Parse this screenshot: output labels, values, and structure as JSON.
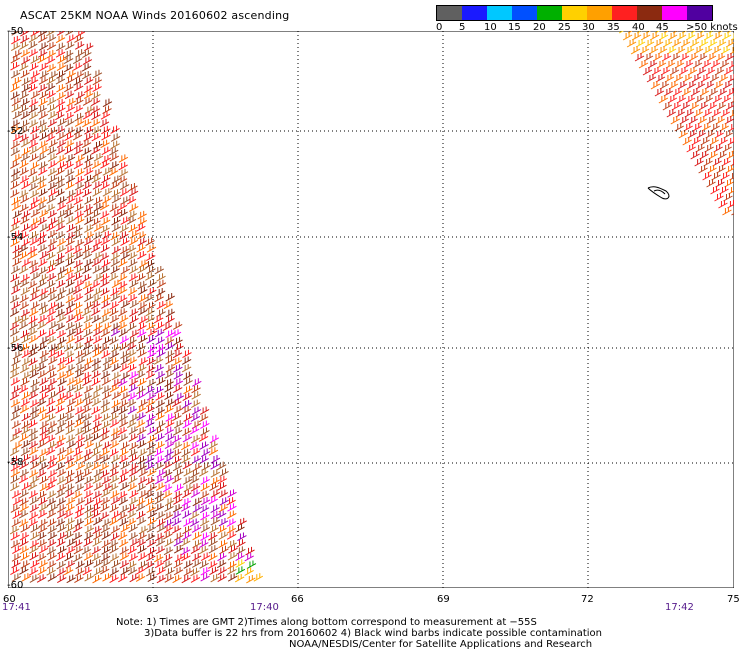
{
  "title": "ASCAT 25KM NOAA Winds 20160602 ascending",
  "legend": {
    "labels": [
      "0",
      "5",
      "10",
      "15",
      "20",
      "25",
      "30",
      "35",
      "40",
      "45",
      ">50 knots"
    ],
    "colors": [
      "#606060",
      "#1a1aff",
      "#00c8ff",
      "#0050ff",
      "#00b000",
      "#ffd000",
      "#ffa000",
      "#ff2020",
      "#8b2a10",
      "#ff00ff",
      "#5000a0"
    ]
  },
  "map": {
    "y_labels": [
      "-50",
      "-52",
      "-54",
      "-56",
      "-58",
      "-60"
    ],
    "x_labels": [
      "60",
      "63",
      "66",
      "69",
      "72",
      "75"
    ],
    "time_labels": [
      "17:41",
      "17:40",
      "17:42"
    ]
  },
  "notes": {
    "line1": "Note: 1) Times are GMT 2)Times along bottom correspond to measurement at −55S",
    "line2": "3)Data buffer is 22 hrs from 20160602 4) Black wind barbs indicate possible contamination",
    "line3": "NOAA/NESDIS/Center for Satellite Applications and Research"
  }
}
